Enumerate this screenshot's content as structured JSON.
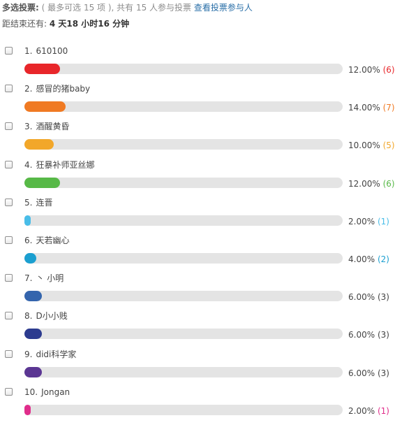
{
  "header": {
    "mode_label": "多选投票",
    "colon": ":",
    "limit_text": " ( 最多可选 15 项 ), 共有 15 人参与投票 ",
    "view_voters_link": "查看投票参与人",
    "deadline_label": "距结束还有: ",
    "deadline_value": "4 天18 小时16 分钟"
  },
  "options": [
    {
      "index": "1.",
      "label": "610100",
      "percent": 12.0,
      "percent_text": "12.00%",
      "count_text": "(6)",
      "color": "#e8262a"
    },
    {
      "index": "2.",
      "label": "感冒的猪baby",
      "percent": 14.0,
      "percent_text": "14.00%",
      "count_text": "(7)",
      "color": "#f07a23"
    },
    {
      "index": "3.",
      "label": "酒醒黄昏",
      "percent": 10.0,
      "percent_text": "10.00%",
      "count_text": "(5)",
      "color": "#f2a72a"
    },
    {
      "index": "4.",
      "label": "狂暴补师亚丝娜",
      "percent": 12.0,
      "percent_text": "12.00%",
      "count_text": "(6)",
      "color": "#57b947"
    },
    {
      "index": "5.",
      "label": "连晋",
      "percent": 2.0,
      "percent_text": "2.00%",
      "count_text": "(1)",
      "color": "#49bde8"
    },
    {
      "index": "6.",
      "label": "天若幽心",
      "percent": 4.0,
      "percent_text": "4.00%",
      "count_text": "(2)",
      "color": "#1b9fd0"
    },
    {
      "index": "7.",
      "label": "丶 小明",
      "percent": 6.0,
      "percent_text": "6.00%",
      "count_text": "(3)",
      "color": "#3465ad"
    },
    {
      "index": "8.",
      "label": "D小小贱",
      "percent": 6.0,
      "percent_text": "6.00%",
      "count_text": "(3)",
      "color": "#2c3b8f"
    },
    {
      "index": "9.",
      "label": "didi科学家",
      "percent": 6.0,
      "percent_text": "6.00%",
      "count_text": "(3)",
      "color": "#5b3693"
    },
    {
      "index": "10.",
      "label": "Jongan",
      "percent": 2.0,
      "percent_text": "2.00%",
      "count_text": "(1)",
      "color": "#e02d8b"
    }
  ]
}
